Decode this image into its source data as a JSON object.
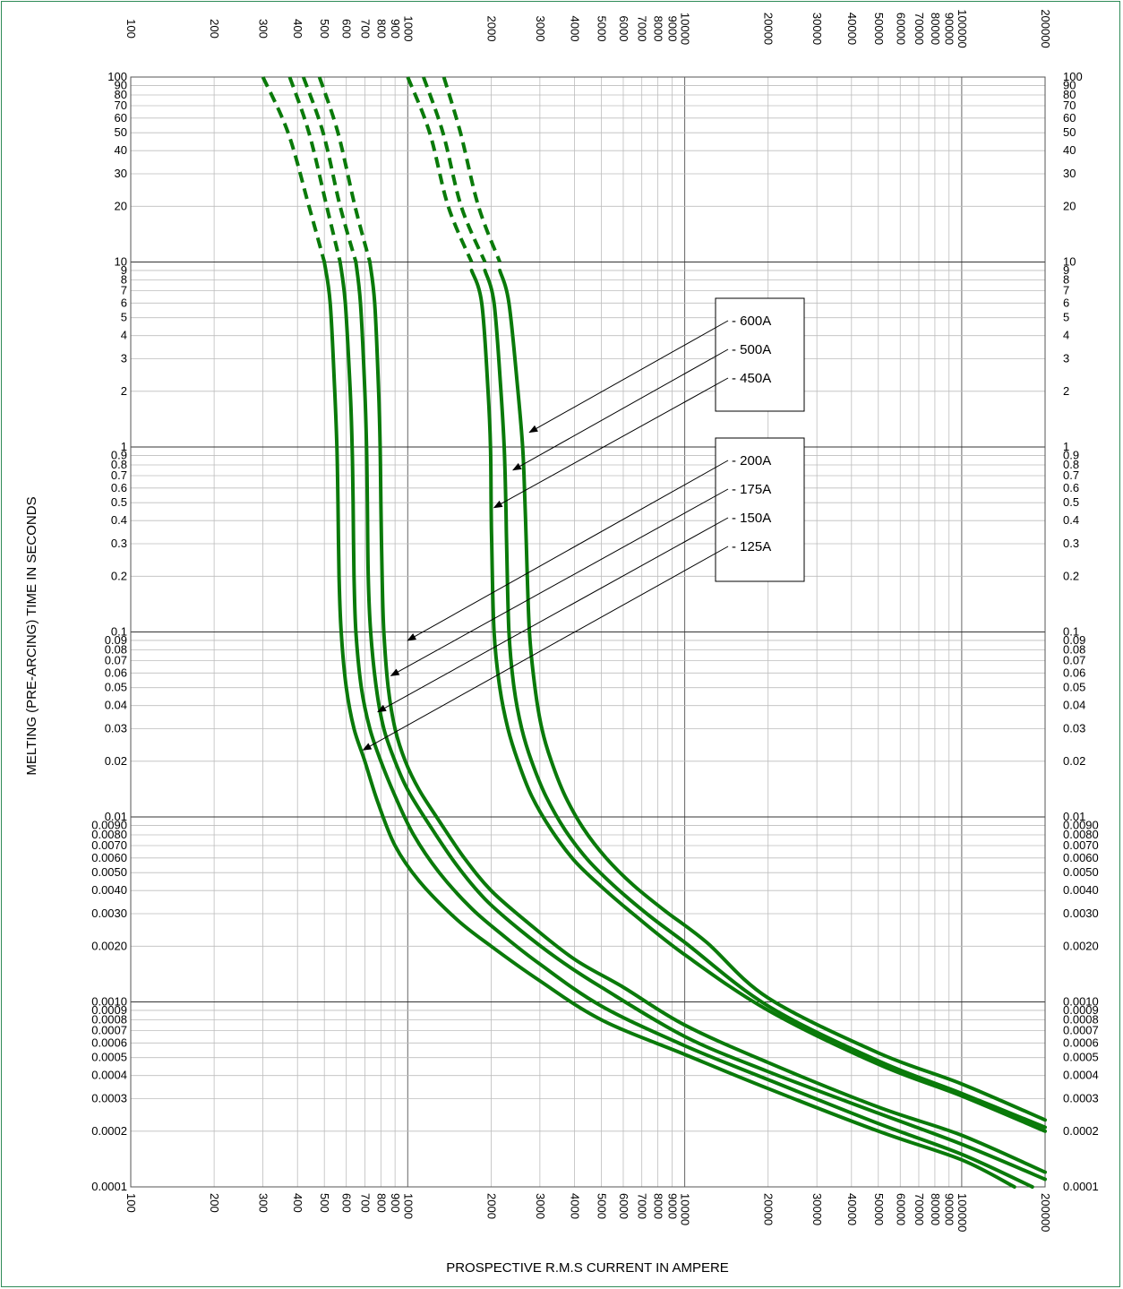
{
  "chart_data": {
    "type": "line",
    "xlabel": "PROSPECTIVE R.M.S CURRENT IN AMPERE",
    "ylabel": "MELTING (PRE-ARCING) TIME IN SECONDS",
    "x_scale": "log",
    "y_scale": "log",
    "xlim": [
      100,
      200000
    ],
    "ylim": [
      0.0001,
      100
    ],
    "x_ticks": [
      "100",
      "200",
      "300",
      "400",
      "500",
      "600",
      "700",
      "800",
      "900",
      "1000",
      "2000",
      "3000",
      "4000",
      "5000",
      "6000",
      "7000",
      "8000",
      "9000",
      "10000",
      "20000",
      "30000",
      "40000",
      "50000",
      "60000",
      "70000",
      "80000",
      "90000",
      "100000",
      "200000"
    ],
    "x_tick_values": [
      100,
      200,
      300,
      400,
      500,
      600,
      700,
      800,
      900,
      1000,
      2000,
      3000,
      4000,
      5000,
      6000,
      7000,
      8000,
      9000,
      10000,
      20000,
      30000,
      40000,
      50000,
      60000,
      70000,
      80000,
      90000,
      100000,
      200000
    ],
    "y_ticks": [
      "100",
      "90",
      "80",
      "70",
      "60",
      "50",
      "40",
      "30",
      "20",
      "10",
      "9",
      "8",
      "7",
      "6",
      "5",
      "4",
      "3",
      "2",
      "1",
      "0.9",
      "0.8",
      "0.7",
      "0.6",
      "0.5",
      "0.4",
      "0.3",
      "0.2",
      "0.1",
      "0.09",
      "0.08",
      "0.07",
      "0.06",
      "0.05",
      "0.04",
      "0.03",
      "0.02",
      "0.01",
      "0.0090",
      "0.0080",
      "0.0070",
      "0.0060",
      "0.0050",
      "0.0040",
      "0.0030",
      "0.0020",
      "0.0010",
      "0.0009",
      "0.0008",
      "0.0007",
      "0.0006",
      "0.0005",
      "0.0004",
      "0.0003",
      "0.0002",
      "0.0001"
    ],
    "y_tick_values": [
      100,
      90,
      80,
      70,
      60,
      50,
      40,
      30,
      20,
      10,
      9,
      8,
      7,
      6,
      5,
      4,
      3,
      2,
      1,
      0.9,
      0.8,
      0.7,
      0.6,
      0.5,
      0.4,
      0.3,
      0.2,
      0.1,
      0.09,
      0.08,
      0.07,
      0.06,
      0.05,
      0.04,
      0.03,
      0.02,
      0.01,
      0.009,
      0.008,
      0.007,
      0.006,
      0.005,
      0.004,
      0.003,
      0.002,
      0.001,
      0.0009,
      0.0008,
      0.0007,
      0.0006,
      0.0005,
      0.0004,
      0.0003,
      0.0002,
      0.0001
    ],
    "grid": true,
    "line_color": "#0a7a0a",
    "series": [
      {
        "name": "125A",
        "dashed": [
          [
            300,
            100
          ],
          [
            370,
            50
          ],
          [
            440,
            20
          ],
          [
            500,
            10
          ]
        ],
        "solid": [
          [
            500,
            10
          ],
          [
            525,
            6
          ],
          [
            545,
            2
          ],
          [
            555,
            1
          ],
          [
            560,
            0.5
          ],
          [
            565,
            0.2
          ],
          [
            575,
            0.1
          ],
          [
            600,
            0.05
          ],
          [
            640,
            0.03
          ],
          [
            700,
            0.02
          ],
          [
            780,
            0.012
          ],
          [
            900,
            0.007
          ],
          [
            1100,
            0.0045
          ],
          [
            1500,
            0.0028
          ],
          [
            2000,
            0.002
          ],
          [
            3000,
            0.0013
          ],
          [
            5000,
            0.0008
          ],
          [
            10000,
            0.00052
          ],
          [
            20000,
            0.00034
          ],
          [
            50000,
            0.0002
          ],
          [
            100000,
            0.00014
          ],
          [
            155000,
            0.0001
          ]
        ]
      },
      {
        "name": "150A",
        "dashed": [
          [
            375,
            100
          ],
          [
            440,
            50
          ],
          [
            510,
            20
          ],
          [
            570,
            10
          ]
        ],
        "solid": [
          [
            570,
            10
          ],
          [
            595,
            6
          ],
          [
            620,
            2
          ],
          [
            630,
            1
          ],
          [
            635,
            0.5
          ],
          [
            640,
            0.2
          ],
          [
            650,
            0.1
          ],
          [
            680,
            0.05
          ],
          [
            730,
            0.03
          ],
          [
            800,
            0.02
          ],
          [
            900,
            0.013
          ],
          [
            1050,
            0.008
          ],
          [
            1300,
            0.005
          ],
          [
            1700,
            0.0032
          ],
          [
            2200,
            0.0023
          ],
          [
            3000,
            0.0016
          ],
          [
            5000,
            0.00095
          ],
          [
            10000,
            0.00058
          ],
          [
            20000,
            0.00038
          ],
          [
            50000,
            0.00022
          ],
          [
            100000,
            0.00015
          ],
          [
            180000,
            0.0001
          ]
        ]
      },
      {
        "name": "175A",
        "dashed": [
          [
            420,
            100
          ],
          [
            495,
            50
          ],
          [
            570,
            20
          ],
          [
            650,
            10
          ]
        ],
        "solid": [
          [
            650,
            10
          ],
          [
            675,
            6
          ],
          [
            700,
            2
          ],
          [
            710,
            1
          ],
          [
            715,
            0.5
          ],
          [
            720,
            0.2
          ],
          [
            735,
            0.1
          ],
          [
            770,
            0.05
          ],
          [
            820,
            0.03
          ],
          [
            900,
            0.02
          ],
          [
            1000,
            0.014
          ],
          [
            1200,
            0.009
          ],
          [
            1500,
            0.0055
          ],
          [
            1900,
            0.0036
          ],
          [
            2500,
            0.0025
          ],
          [
            3500,
            0.0017
          ],
          [
            5000,
            0.0012
          ],
          [
            10000,
            0.00065
          ],
          [
            20000,
            0.00042
          ],
          [
            50000,
            0.00025
          ],
          [
            100000,
            0.00017
          ],
          [
            200000,
            0.00011
          ]
        ]
      },
      {
        "name": "200A",
        "dashed": [
          [
            480,
            100
          ],
          [
            560,
            50
          ],
          [
            645,
            20
          ],
          [
            730,
            10
          ]
        ],
        "solid": [
          [
            730,
            10
          ],
          [
            760,
            6
          ],
          [
            785,
            2
          ],
          [
            795,
            1
          ],
          [
            800,
            0.5
          ],
          [
            808,
            0.2
          ],
          [
            820,
            0.1
          ],
          [
            850,
            0.05
          ],
          [
            900,
            0.03
          ],
          [
            980,
            0.02
          ],
          [
            1100,
            0.014
          ],
          [
            1300,
            0.0095
          ],
          [
            1600,
            0.006
          ],
          [
            2000,
            0.004
          ],
          [
            2700,
            0.0027
          ],
          [
            4000,
            0.0017
          ],
          [
            6000,
            0.0012
          ],
          [
            10000,
            0.00075
          ],
          [
            20000,
            0.00047
          ],
          [
            50000,
            0.00027
          ],
          [
            100000,
            0.00019
          ],
          [
            200000,
            0.00012
          ]
        ]
      },
      {
        "name": "450A",
        "dashed": [
          [
            1000,
            100
          ],
          [
            1200,
            50
          ],
          [
            1400,
            20
          ],
          [
            1700,
            10
          ]
        ],
        "solid": [
          [
            1700,
            9
          ],
          [
            1850,
            6
          ],
          [
            1950,
            2
          ],
          [
            1990,
            1
          ],
          [
            2000,
            0.5
          ],
          [
            2010,
            0.3
          ],
          [
            2050,
            0.1
          ],
          [
            2150,
            0.05
          ],
          [
            2300,
            0.03
          ],
          [
            2500,
            0.02
          ],
          [
            2800,
            0.013
          ],
          [
            3300,
            0.0085
          ],
          [
            4000,
            0.0058
          ],
          [
            5000,
            0.0042
          ],
          [
            6500,
            0.003
          ],
          [
            10000,
            0.0018
          ],
          [
            20000,
            0.0009
          ],
          [
            50000,
            0.00046
          ],
          [
            100000,
            0.00031
          ],
          [
            200000,
            0.0002
          ]
        ]
      },
      {
        "name": "500A",
        "dashed": [
          [
            1140,
            100
          ],
          [
            1340,
            50
          ],
          [
            1560,
            20
          ],
          [
            1900,
            10
          ]
        ],
        "solid": [
          [
            1900,
            9
          ],
          [
            2050,
            6
          ],
          [
            2170,
            2
          ],
          [
            2230,
            1
          ],
          [
            2260,
            0.5
          ],
          [
            2275,
            0.3
          ],
          [
            2320,
            0.1
          ],
          [
            2420,
            0.05
          ],
          [
            2580,
            0.03
          ],
          [
            2800,
            0.02
          ],
          [
            3150,
            0.013
          ],
          [
            3700,
            0.0085
          ],
          [
            4500,
            0.0058
          ],
          [
            5700,
            0.0041
          ],
          [
            7500,
            0.0029
          ],
          [
            10000,
            0.0021
          ],
          [
            20000,
            0.00095
          ],
          [
            50000,
            0.00048
          ],
          [
            100000,
            0.00032
          ],
          [
            200000,
            0.00021
          ]
        ]
      },
      {
        "name": "600A",
        "dashed": [
          [
            1350,
            100
          ],
          [
            1550,
            50
          ],
          [
            1800,
            20
          ],
          [
            2150,
            10
          ]
        ],
        "solid": [
          [
            2150,
            9
          ],
          [
            2320,
            6
          ],
          [
            2500,
            2
          ],
          [
            2600,
            1
          ],
          [
            2650,
            0.5
          ],
          [
            2680,
            0.3
          ],
          [
            2750,
            0.1
          ],
          [
            2880,
            0.05
          ],
          [
            3050,
            0.03
          ],
          [
            3300,
            0.02
          ],
          [
            3700,
            0.013
          ],
          [
            4300,
            0.0087
          ],
          [
            5200,
            0.006
          ],
          [
            6500,
            0.0043
          ],
          [
            8500,
            0.0031
          ],
          [
            12000,
            0.0021
          ],
          [
            20000,
            0.00105
          ],
          [
            50000,
            0.00053
          ],
          [
            100000,
            0.00036
          ],
          [
            200000,
            0.00023
          ]
        ]
      }
    ],
    "legend_boxes": [
      {
        "labels": [
          "600A",
          "500A",
          "450A"
        ],
        "items": [
          "600A",
          "500A",
          "450A"
        ],
        "targets": [
          [
            2750,
            1.2
          ],
          [
            2400,
            0.75
          ],
          [
            2050,
            0.47
          ]
        ]
      },
      {
        "labels": [
          "200A",
          "175A",
          "150A",
          "125A"
        ],
        "items": [
          "200A",
          "175A",
          "150A",
          "125A"
        ],
        "targets": [
          [
            1000,
            0.09
          ],
          [
            870,
            0.058
          ],
          [
            780,
            0.037
          ],
          [
            690,
            0.023
          ]
        ]
      }
    ],
    "legend_prefix": "-"
  }
}
